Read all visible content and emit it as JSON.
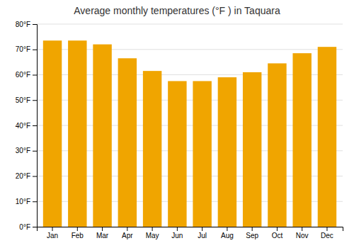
{
  "chart_data": {
    "type": "bar",
    "title": "Average monthly temperatures (°F ) in Taquara",
    "categories": [
      "Jan",
      "Feb",
      "Mar",
      "Apr",
      "May",
      "Jun",
      "Jul",
      "Aug",
      "Sep",
      "Oct",
      "Nov",
      "Dec"
    ],
    "values": [
      73.5,
      73.5,
      72.0,
      66.5,
      61.5,
      57.5,
      57.5,
      59.0,
      61.0,
      64.5,
      68.5,
      71.0
    ],
    "color": "#F0A500",
    "ylim": [
      0,
      80
    ],
    "yticks": [
      {
        "value": 0,
        "label": "0°F"
      },
      {
        "value": 10,
        "label": "10°F"
      },
      {
        "value": 20,
        "label": "20°F"
      },
      {
        "value": 30,
        "label": "30°F"
      },
      {
        "value": 40,
        "label": "40°F"
      },
      {
        "value": 50,
        "label": "50°F"
      },
      {
        "value": 60,
        "label": "60°F"
      },
      {
        "value": 70,
        "label": "70°F"
      },
      {
        "value": 80,
        "label": "80°F"
      }
    ],
    "grid": true
  }
}
